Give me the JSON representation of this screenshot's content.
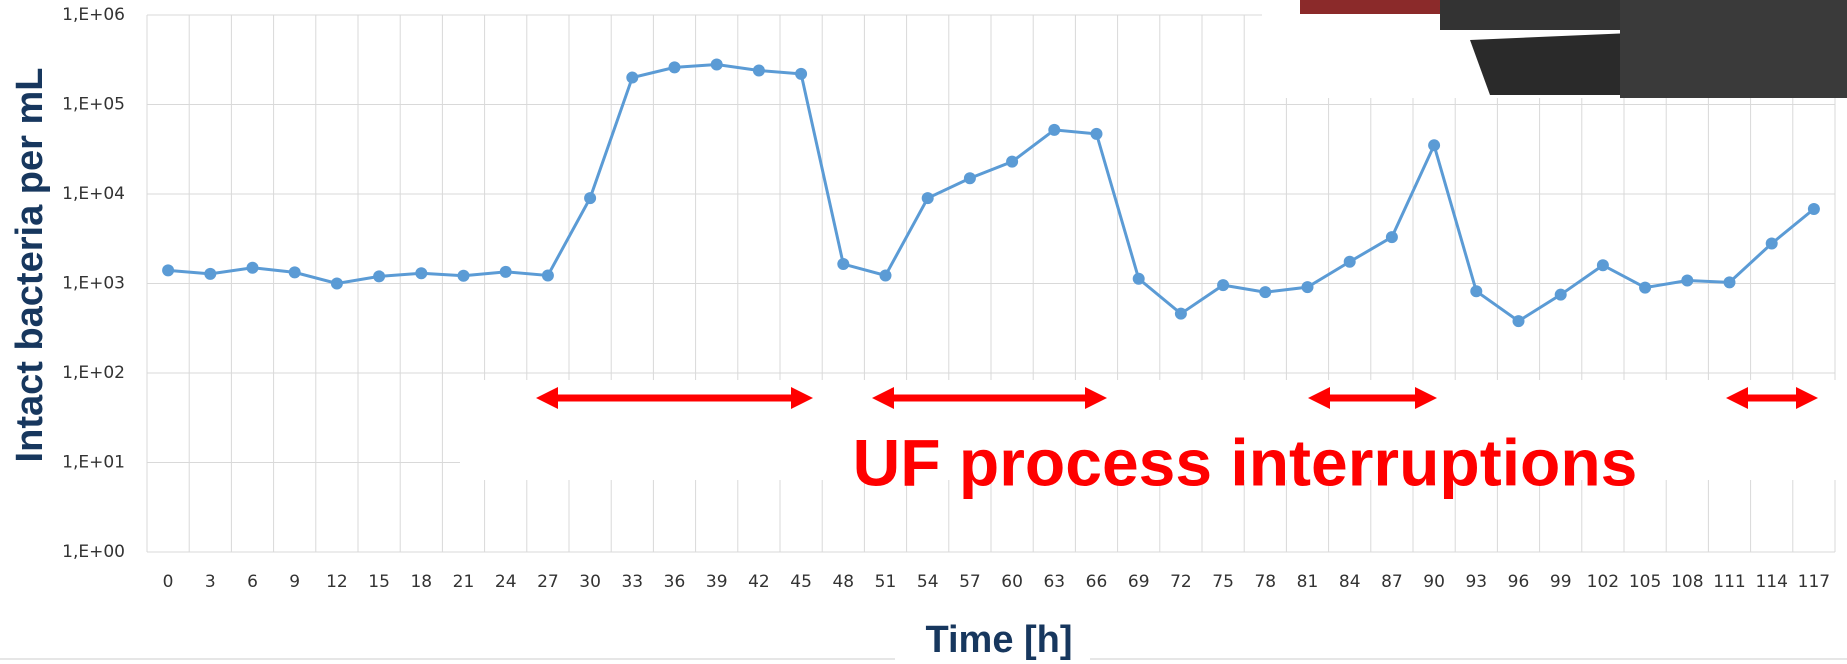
{
  "chart_data": {
    "type": "line",
    "x_label": "Time [h]",
    "y_label": "Intact bacteria per mL",
    "annotation": "UF process interruptions",
    "categories": [
      "0",
      "3",
      "6",
      "9",
      "12",
      "15",
      "18",
      "21",
      "24",
      "27",
      "30",
      "33",
      "36",
      "39",
      "42",
      "45",
      "48",
      "51",
      "54",
      "57",
      "60",
      "63",
      "66",
      "69",
      "72",
      "75",
      "78",
      "81",
      "84",
      "87",
      "90",
      "93",
      "96",
      "99",
      "102",
      "105",
      "108",
      "111",
      "114",
      "117"
    ],
    "series": [
      {
        "color": "#5b9bd5",
        "values": [
          1400,
          1280,
          1500,
          1330,
          1000,
          1200,
          1300,
          1220,
          1350,
          1230,
          9000,
          200000,
          260000,
          280000,
          240000,
          220000,
          1650,
          1230,
          9000,
          15000,
          23000,
          52000,
          47000,
          1130,
          460,
          960,
          800,
          910,
          1750,
          3300,
          35000,
          820,
          380,
          750,
          1600,
          900,
          1080,
          1030,
          2800,
          6800
        ]
      }
    ],
    "ylim": [
      1,
      1000000
    ],
    "y_scale": "log",
    "yticks": [
      {
        "value": 1,
        "label": "1,E+00"
      },
      {
        "value": 10,
        "label": "1,E+01"
      },
      {
        "value": 100,
        "label": "1,E+02"
      },
      {
        "value": 1000,
        "label": "1,E+03"
      },
      {
        "value": 10000,
        "label": "1,E+04"
      },
      {
        "value": 100000,
        "label": "1,E+05"
      },
      {
        "value": 1000000,
        "label": "1,E+06"
      }
    ],
    "grid": true,
    "annotation_color": "#ff0000"
  }
}
